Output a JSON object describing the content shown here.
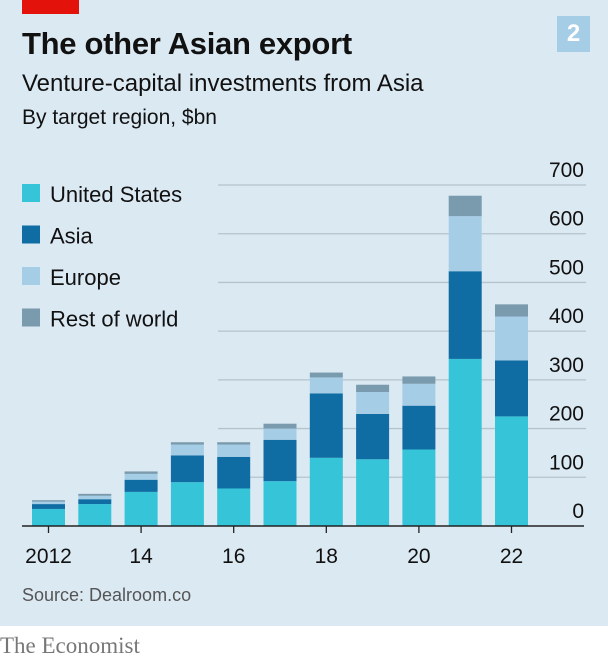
{
  "header": {
    "badge": "2",
    "title": "The other Asian export",
    "subtitle": "Venture-capital investments from Asia",
    "unit_line": "By target region, $bn"
  },
  "footer": {
    "source": "Source: Dealroom.co",
    "brand": "The Economist"
  },
  "colors": {
    "background": "#dbe9f3",
    "united_states": "#36c4d8",
    "asia": "#0f6da3",
    "europe": "#a6cde6",
    "rest_of_world": "#7a9bae",
    "accent_red": "#e3120b"
  },
  "chart_data": {
    "type": "bar",
    "stacked": true,
    "title": "The other Asian export",
    "subtitle": "Venture-capital investments from Asia",
    "ylabel": "By target region, $bn",
    "x": [
      2012,
      2013,
      2014,
      2015,
      2016,
      2017,
      2018,
      2019,
      2020,
      2021,
      2022
    ],
    "x_tick_labels": [
      {
        "x": 2012,
        "label": "2012"
      },
      {
        "x": 2014,
        "label": "14"
      },
      {
        "x": 2016,
        "label": "16"
      },
      {
        "x": 2018,
        "label": "18"
      },
      {
        "x": 2020,
        "label": "20"
      },
      {
        "x": 2022,
        "label": "22"
      }
    ],
    "y_ticks": [
      0,
      100,
      200,
      300,
      400,
      500,
      600,
      700
    ],
    "ylim": [
      0,
      700
    ],
    "grid": true,
    "y_axis_side": "right",
    "legend_placement": "top-left",
    "series": [
      {
        "name": "United States",
        "color": "#36c4d8",
        "values": [
          35,
          45,
          70,
          90,
          77,
          92,
          140,
          137,
          157,
          343,
          225
        ]
      },
      {
        "name": "Asia",
        "color": "#0f6da3",
        "values": [
          10,
          10,
          25,
          55,
          65,
          85,
          132,
          93,
          90,
          180,
          115
        ]
      },
      {
        "name": "Europe",
        "color": "#a6cde6",
        "values": [
          5,
          7,
          12,
          22,
          25,
          23,
          33,
          45,
          45,
          113,
          90
        ]
      },
      {
        "name": "Rest of world",
        "color": "#7a9bae",
        "values": [
          3,
          4,
          5,
          5,
          5,
          10,
          10,
          15,
          15,
          42,
          25
        ]
      }
    ]
  }
}
